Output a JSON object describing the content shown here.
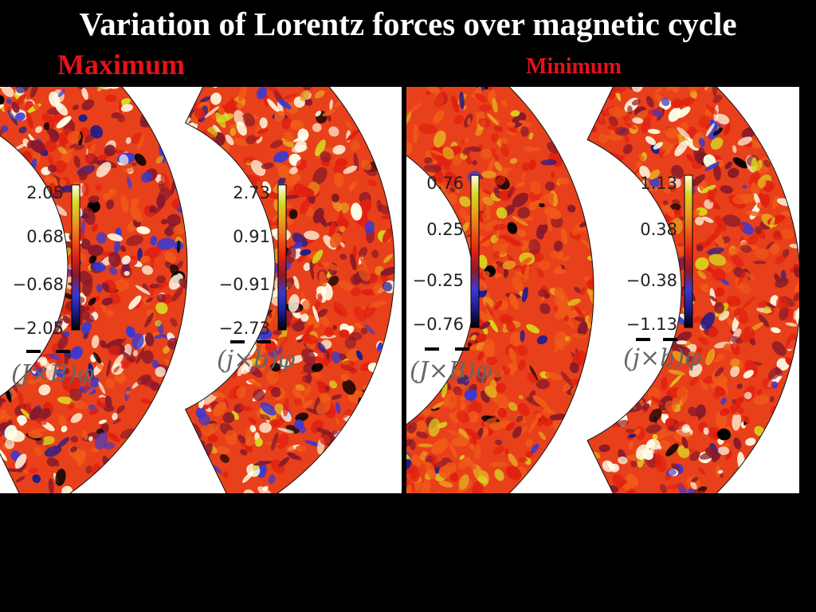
{
  "slide": {
    "title": "Variation of Lorentz forces over magnetic cycle",
    "maximum_label": "Maximum",
    "minimum_label": "Minimum"
  },
  "plots": [
    {
      "id": "max_mean",
      "panel": "maximum",
      "formula": "(J×B)φ",
      "colorbar_ticks": [
        "2.05",
        "0.68",
        "−0.68",
        "−2.05"
      ]
    },
    {
      "id": "max_fluct",
      "panel": "maximum",
      "formula": "(j×b)φ",
      "colorbar_ticks": [
        "2.73",
        "0.91",
        "−0.91",
        "−2.73"
      ]
    },
    {
      "id": "min_mean",
      "panel": "minimum",
      "formula": "(J×B)φ",
      "colorbar_ticks": [
        "0.76",
        "0.25",
        "−0.25",
        "−0.76"
      ]
    },
    {
      "id": "min_fluct",
      "panel": "minimum",
      "formula": "(j×b)φ",
      "colorbar_ticks": [
        "1.13",
        "0.38",
        "−0.38",
        "−1.13"
      ]
    }
  ],
  "colors": {
    "background": "#000000",
    "title": "#ffffff",
    "accent_red": "#e8101a",
    "colormap": [
      "#000000",
      "#1c1c8c",
      "#3a3ad0",
      "#8a1a2a",
      "#e02010",
      "#f05a18",
      "#e8a020",
      "#d8d820",
      "#ffffe8"
    ]
  }
}
